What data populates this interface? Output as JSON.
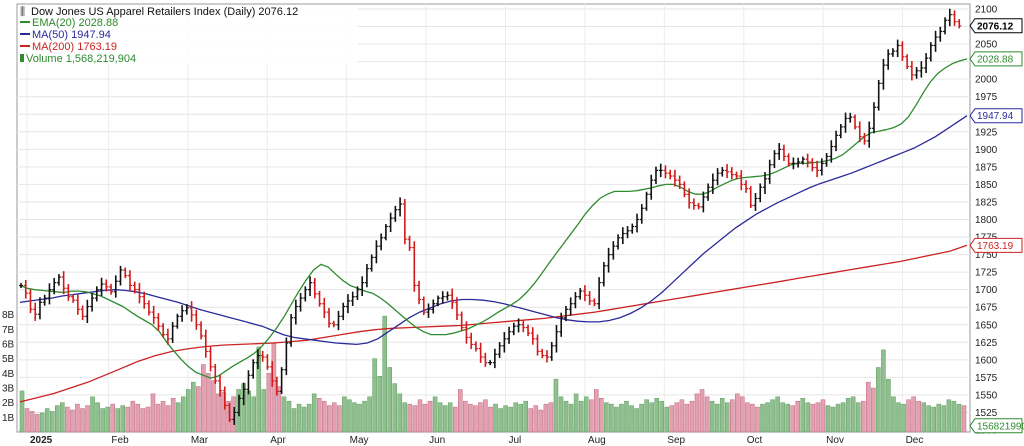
{
  "chart_data": {
    "type": "ohlc",
    "title": "Dow Jones US Apparel Retailers Index (Daily) 2076.12",
    "legend": [
      {
        "name": "EMA(20) 2028.88",
        "color": "#2e8b2e"
      },
      {
        "name": "MA(50) 1947.94",
        "color": "#2a2a9a"
      },
      {
        "name": "MA(200) 1763.19",
        "color": "#cc2222"
      },
      {
        "name": "Volume 1,568,219,904",
        "color": "#2e8b2e"
      }
    ],
    "y_ticks": [
      "2100",
      "2075",
      "2050",
      "2025",
      "2000",
      "1975",
      "1950",
      "1925",
      "1900",
      "1875",
      "1850",
      "1825",
      "1800",
      "1775",
      "1750",
      "1725",
      "1700",
      "1675",
      "1650",
      "1625",
      "1600",
      "1575",
      "1550",
      "1525",
      "1500"
    ],
    "ylim": [
      1500,
      2110
    ],
    "volume_ticks": [
      "8B",
      "7B",
      "6B",
      "5B",
      "4B",
      "3B",
      "2B",
      "1B"
    ],
    "volume_max": 9.0,
    "months": [
      "2025",
      "Feb",
      "Mar",
      "Apr",
      "May",
      "Jun",
      "Jul",
      "Aug",
      "Sep",
      "Oct",
      "Nov",
      "Dec"
    ],
    "tags": [
      {
        "label": "2076.12",
        "value": 2076.12,
        "color": "#000000",
        "bold": true
      },
      {
        "label": "2028.88",
        "value": 2028.88,
        "color": "#2e8b2e"
      },
      {
        "label": "1947.94",
        "value": 1947.94,
        "color": "#2a2a9a"
      },
      {
        "label": "1763.19",
        "value": 1763.19,
        "color": "#cc2222"
      },
      {
        "label": "1568219904",
        "value": 1506,
        "color": "#2e8b2e"
      }
    ],
    "price_path": [
      1706,
      1695,
      1672,
      1665,
      1682,
      1688,
      1700,
      1710,
      1718,
      1702,
      1690,
      1685,
      1672,
      1662,
      1676,
      1688,
      1700,
      1708,
      1704,
      1697,
      1712,
      1728,
      1720,
      1706,
      1700,
      1690,
      1680,
      1668,
      1660,
      1648,
      1636,
      1630,
      1648,
      1662,
      1670,
      1674,
      1664,
      1650,
      1634,
      1612,
      1590,
      1570,
      1556,
      1535,
      1515,
      1525,
      1545,
      1558,
      1578,
      1596,
      1606,
      1604,
      1590,
      1570,
      1555,
      1586,
      1624,
      1660,
      1676,
      1688,
      1700,
      1710,
      1694,
      1680,
      1668,
      1652,
      1650,
      1662,
      1676,
      1684,
      1690,
      1700,
      1710,
      1730,
      1746,
      1762,
      1774,
      1790,
      1802,
      1814,
      1822,
      1772,
      1760,
      1706,
      1686,
      1668,
      1672,
      1680,
      1688,
      1690,
      1692,
      1682,
      1664,
      1646,
      1632,
      1622,
      1616,
      1604,
      1596,
      1596,
      1608,
      1620,
      1630,
      1640,
      1648,
      1650,
      1646,
      1638,
      1630,
      1612,
      1606,
      1604,
      1620,
      1640,
      1660,
      1672,
      1680,
      1690,
      1698,
      1692,
      1684,
      1680,
      1710,
      1734,
      1750,
      1762,
      1774,
      1780,
      1784,
      1790,
      1800,
      1816,
      1836,
      1856,
      1870,
      1870,
      1866,
      1862,
      1856,
      1850,
      1836,
      1824,
      1820,
      1818,
      1832,
      1846,
      1856,
      1866,
      1870,
      1868,
      1864,
      1862,
      1850,
      1844,
      1820,
      1830,
      1846,
      1858,
      1878,
      1894,
      1900,
      1890,
      1880,
      1880,
      1882,
      1886,
      1882,
      1874,
      1870,
      1880,
      1890,
      1904,
      1920,
      1932,
      1944,
      1946,
      1932,
      1918,
      1912,
      1930,
      1960,
      1994,
      2020,
      2036,
      2040,
      2048,
      2032,
      2018,
      2006,
      2012,
      2016,
      2030,
      2048,
      2060,
      2068,
      2084,
      2092,
      2082,
      2076
    ],
    "ema20": [
      1706,
      1702,
      1700,
      1699,
      1698,
      1697,
      1696,
      1698,
      1698,
      1697,
      1694,
      1691,
      1686,
      1681,
      1676,
      1669,
      1662,
      1656,
      1650,
      1640,
      1625,
      1612,
      1600,
      1590,
      1582,
      1578,
      1574,
      1577,
      1584,
      1591,
      1597,
      1603,
      1610,
      1620,
      1632,
      1646,
      1662,
      1680,
      1698,
      1714,
      1728,
      1736,
      1732,
      1722,
      1713,
      1706,
      1702,
      1698,
      1695,
      1689,
      1681,
      1672,
      1663,
      1654,
      1646,
      1640,
      1636,
      1636,
      1636,
      1638,
      1641,
      1644,
      1649,
      1654,
      1660,
      1667,
      1673,
      1679,
      1686,
      1696,
      1708,
      1722,
      1737,
      1751,
      1765,
      1779,
      1793,
      1808,
      1820,
      1830,
      1836,
      1840,
      1840,
      1840,
      1841,
      1843,
      1845,
      1848,
      1850,
      1850,
      1846,
      1840,
      1836,
      1836,
      1840,
      1846,
      1851,
      1856,
      1859,
      1860,
      1861,
      1862,
      1864,
      1868,
      1873,
      1878,
      1880,
      1880,
      1881,
      1882,
      1884,
      1887,
      1892,
      1900,
      1909,
      1918,
      1924,
      1926,
      1928,
      1931,
      1936,
      1946,
      1962,
      1980,
      1996,
      2008,
      2016,
      2022,
      2026,
      2028.88
    ],
    "ma50": [
      1682,
      1684,
      1686,
      1688,
      1691,
      1693,
      1695,
      1697,
      1699,
      1700,
      1699,
      1697,
      1694,
      1690,
      1686,
      1682,
      1677,
      1672,
      1668,
      1664,
      1660,
      1656,
      1652,
      1648,
      1642,
      1636,
      1632,
      1630,
      1628,
      1626,
      1624,
      1623,
      1622,
      1624,
      1630,
      1640,
      1650,
      1660,
      1668,
      1674,
      1680,
      1684,
      1686,
      1686,
      1685,
      1683,
      1680,
      1676,
      1672,
      1668,
      1664,
      1660,
      1657,
      1655,
      1654,
      1654,
      1656,
      1660,
      1666,
      1674,
      1684,
      1696,
      1710,
      1724,
      1738,
      1752,
      1764,
      1776,
      1788,
      1798,
      1808,
      1816,
      1824,
      1831,
      1838,
      1845,
      1851,
      1856,
      1861,
      1866,
      1872,
      1878,
      1884,
      1890,
      1896,
      1902,
      1910,
      1918,
      1928,
      1938,
      1947.94
    ],
    "ma200": [
      1540,
      1546,
      1552,
      1560,
      1568,
      1578,
      1588,
      1598,
      1606,
      1612,
      1616,
      1619,
      1621,
      1622,
      1623,
      1624,
      1626,
      1628,
      1632,
      1636,
      1640,
      1643,
      1645,
      1646,
      1647,
      1648,
      1649,
      1651,
      1653,
      1655,
      1657,
      1659,
      1662,
      1665,
      1668,
      1672,
      1676,
      1680,
      1684,
      1688,
      1692,
      1696,
      1700,
      1704,
      1708,
      1712,
      1716,
      1720,
      1724,
      1728,
      1732,
      1736,
      1740,
      1745,
      1750,
      1755,
      1763.19
    ],
    "volume": [
      2.8,
      1.6,
      1.4,
      1.2,
      1.3,
      1.6,
      1.4,
      1.8,
      2.0,
      1.7,
      1.5,
      1.9,
      1.6,
      1.8,
      2.4,
      2.0,
      1.6,
      1.7,
      1.9,
      1.6,
      1.8,
      1.7,
      2.1,
      1.9,
      1.6,
      1.7,
      2.6,
      1.9,
      2.1,
      1.8,
      2.3,
      2.0,
      2.4,
      2.9,
      3.4,
      3.1,
      4.6,
      4.0,
      3.5,
      2.6,
      2.7,
      2.1,
      2.4,
      2.9,
      3.3,
      2.8,
      2.4,
      5.8,
      2.9,
      4.0,
      6.1,
      3.1,
      2.4,
      2.1,
      1.6,
      1.9,
      1.7,
      1.9,
      2.6,
      2.3,
      2.1,
      1.8,
      2.0,
      1.8,
      2.4,
      2.2,
      2.0,
      1.9,
      2.1,
      2.4,
      5.0,
      3.8,
      7.9,
      4.4,
      3.3,
      2.6,
      2.0,
      1.9,
      1.8,
      2.2,
      1.9,
      2.1,
      2.4,
      2.0,
      1.8,
      2.0,
      1.7,
      2.9,
      2.1,
      1.9,
      1.8,
      2.0,
      2.2,
      1.7,
      1.9,
      1.6,
      1.8,
      1.7,
      2.0,
      1.9,
      2.1,
      1.6,
      1.8,
      1.5,
      1.9,
      2.0,
      3.6,
      2.4,
      2.1,
      1.9,
      2.6,
      2.1,
      2.4,
      2.2,
      2.9,
      2.3,
      2.0,
      1.9,
      1.7,
      1.9,
      2.1,
      1.8,
      1.6,
      1.9,
      2.2,
      2.0,
      2.3,
      2.1,
      1.7,
      1.8,
      2.0,
      2.2,
      1.9,
      2.1,
      2.6,
      2.9,
      2.4,
      2.1,
      1.9,
      2.3,
      2.0,
      2.2,
      2.6,
      2.4,
      2.0,
      1.9,
      1.7,
      1.9,
      2.0,
      2.2,
      2.4,
      2.0,
      1.9,
      1.8,
      2.1,
      2.3,
      2.0,
      1.9,
      2.0,
      2.2,
      1.8,
      1.7,
      1.9,
      2.0,
      2.3,
      2.4,
      2.0,
      2.1,
      3.4,
      3.0,
      4.4,
      5.6,
      3.6,
      2.4,
      2.0,
      1.9,
      2.2,
      2.4,
      2.1,
      2.0,
      1.8,
      1.7,
      1.9,
      1.8,
      2.2,
      2.1,
      1.9,
      1.8
    ]
  }
}
